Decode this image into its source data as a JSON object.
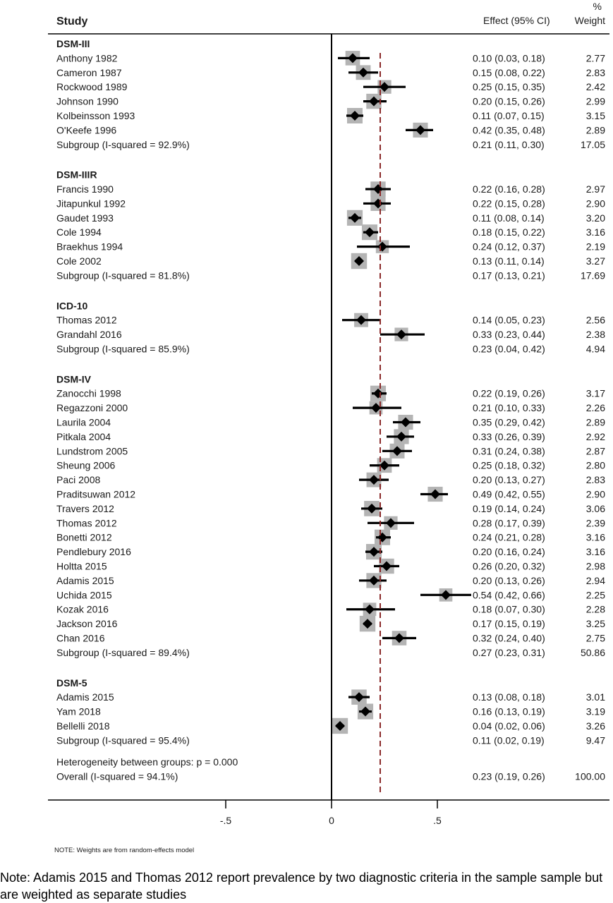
{
  "header": {
    "study": "Study",
    "effect": "Effect (95% CI)",
    "weight_pct": "%",
    "weight": "Weight"
  },
  "chart_data": {
    "type": "forest",
    "xlim": [
      -1.0,
      1.3
    ],
    "ticks": [
      {
        "value": -0.5,
        "label": "-.5"
      },
      {
        "value": 0,
        "label": "0"
      },
      {
        "value": 0.5,
        "label": ".5"
      }
    ],
    "reference_line": 0,
    "overall_line": 0.23,
    "groups": [
      {
        "name": "DSM-III",
        "studies": [
          {
            "label": "Anthony 1982",
            "es": 0.1,
            "lo": 0.03,
            "hi": 0.18,
            "ci": "0.10 (0.03, 0.18)",
            "weight": 2.77,
            "weight_label": "2.77"
          },
          {
            "label": "Cameron 1987",
            "es": 0.15,
            "lo": 0.08,
            "hi": 0.22,
            "ci": "0.15 (0.08, 0.22)",
            "weight": 2.83,
            "weight_label": "2.83"
          },
          {
            "label": "Rockwood 1989",
            "es": 0.25,
            "lo": 0.15,
            "hi": 0.35,
            "ci": "0.25 (0.15, 0.35)",
            "weight": 2.42,
            "weight_label": "2.42"
          },
          {
            "label": "Johnson 1990",
            "es": 0.2,
            "lo": 0.15,
            "hi": 0.26,
            "ci": "0.20 (0.15, 0.26)",
            "weight": 2.99,
            "weight_label": "2.99"
          },
          {
            "label": "Kolbeinsson 1993",
            "es": 0.11,
            "lo": 0.07,
            "hi": 0.15,
            "ci": "0.11 (0.07, 0.15)",
            "weight": 3.15,
            "weight_label": "3.15"
          },
          {
            "label": "O'Keefe 1996",
            "es": 0.42,
            "lo": 0.35,
            "hi": 0.48,
            "ci": "0.42 (0.35, 0.48)",
            "weight": 2.89,
            "weight_label": "2.89"
          }
        ],
        "subgroup": {
          "label": "Subgroup (I-squared = 92.9%)",
          "es": 0.21,
          "lo": 0.11,
          "hi": 0.3,
          "ci": "0.21 (0.11, 0.30)",
          "weight_label": "17.05"
        }
      },
      {
        "name": "DSM-IIIR",
        "studies": [
          {
            "label": "Francis 1990",
            "es": 0.22,
            "lo": 0.16,
            "hi": 0.28,
            "ci": "0.22 (0.16, 0.28)",
            "weight": 2.97,
            "weight_label": "2.97"
          },
          {
            "label": "Jitapunkul 1992",
            "es": 0.22,
            "lo": 0.15,
            "hi": 0.28,
            "ci": "0.22 (0.15, 0.28)",
            "weight": 2.9,
            "weight_label": "2.90"
          },
          {
            "label": "Gaudet 1993",
            "es": 0.11,
            "lo": 0.08,
            "hi": 0.14,
            "ci": "0.11 (0.08, 0.14)",
            "weight": 3.2,
            "weight_label": "3.20"
          },
          {
            "label": "Cole 1994",
            "es": 0.18,
            "lo": 0.15,
            "hi": 0.22,
            "ci": "0.18 (0.15, 0.22)",
            "weight": 3.16,
            "weight_label": "3.16"
          },
          {
            "label": "Braekhus 1994",
            "es": 0.24,
            "lo": 0.12,
            "hi": 0.37,
            "ci": "0.24 (0.12, 0.37)",
            "weight": 2.19,
            "weight_label": "2.19"
          },
          {
            "label": "Cole 2002",
            "es": 0.13,
            "lo": 0.11,
            "hi": 0.14,
            "ci": "0.13 (0.11, 0.14)",
            "weight": 3.27,
            "weight_label": "3.27"
          }
        ],
        "subgroup": {
          "label": "Subgroup (I-squared = 81.8%)",
          "es": 0.17,
          "lo": 0.13,
          "hi": 0.21,
          "ci": "0.17 (0.13, 0.21)",
          "weight_label": "17.69"
        }
      },
      {
        "name": "ICD-10",
        "studies": [
          {
            "label": "Thomas 2012",
            "es": 0.14,
            "lo": 0.05,
            "hi": 0.23,
            "ci": "0.14 (0.05, 0.23)",
            "weight": 2.56,
            "weight_label": "2.56"
          },
          {
            "label": "Grandahl 2016",
            "es": 0.33,
            "lo": 0.23,
            "hi": 0.44,
            "ci": "0.33 (0.23, 0.44)",
            "weight": 2.38,
            "weight_label": "2.38"
          }
        ],
        "subgroup": {
          "label": "Subgroup (I-squared = 85.9%)",
          "es": 0.23,
          "lo": 0.04,
          "hi": 0.42,
          "ci": "0.23 (0.04, 0.42)",
          "weight_label": "4.94"
        }
      },
      {
        "name": "DSM-IV",
        "studies": [
          {
            "label": "Zanocchi 1998",
            "es": 0.22,
            "lo": 0.19,
            "hi": 0.26,
            "ci": "0.22 (0.19, 0.26)",
            "weight": 3.17,
            "weight_label": "3.17"
          },
          {
            "label": "Regazzoni 2000",
            "es": 0.21,
            "lo": 0.1,
            "hi": 0.33,
            "ci": "0.21 (0.10, 0.33)",
            "weight": 2.26,
            "weight_label": "2.26"
          },
          {
            "label": "Laurila 2004",
            "es": 0.35,
            "lo": 0.29,
            "hi": 0.42,
            "ci": "0.35 (0.29, 0.42)",
            "weight": 2.89,
            "weight_label": "2.89"
          },
          {
            "label": "Pitkala 2004",
            "es": 0.33,
            "lo": 0.26,
            "hi": 0.39,
            "ci": "0.33 (0.26, 0.39)",
            "weight": 2.92,
            "weight_label": "2.92"
          },
          {
            "label": "Lundstrom 2005",
            "es": 0.31,
            "lo": 0.24,
            "hi": 0.38,
            "ci": "0.31 (0.24, 0.38)",
            "weight": 2.87,
            "weight_label": "2.87"
          },
          {
            "label": "Sheung 2006",
            "es": 0.25,
            "lo": 0.18,
            "hi": 0.32,
            "ci": "0.25 (0.18, 0.32)",
            "weight": 2.8,
            "weight_label": "2.80"
          },
          {
            "label": "Paci 2008",
            "es": 0.2,
            "lo": 0.13,
            "hi": 0.27,
            "ci": "0.20 (0.13, 0.27)",
            "weight": 2.83,
            "weight_label": "2.83"
          },
          {
            "label": "Praditsuwan 2012",
            "es": 0.49,
            "lo": 0.42,
            "hi": 0.55,
            "ci": "0.49 (0.42, 0.55)",
            "weight": 2.9,
            "weight_label": "2.90"
          },
          {
            "label": "Travers 2012",
            "es": 0.19,
            "lo": 0.14,
            "hi": 0.24,
            "ci": "0.19 (0.14, 0.24)",
            "weight": 3.06,
            "weight_label": "3.06"
          },
          {
            "label": "Thomas 2012",
            "es": 0.28,
            "lo": 0.17,
            "hi": 0.39,
            "ci": "0.28 (0.17, 0.39)",
            "weight": 2.39,
            "weight_label": "2.39"
          },
          {
            "label": "Bonetti 2012",
            "es": 0.24,
            "lo": 0.21,
            "hi": 0.28,
            "ci": "0.24 (0.21, 0.28)",
            "weight": 3.16,
            "weight_label": "3.16"
          },
          {
            "label": "Pendlebury 2016",
            "es": 0.2,
            "lo": 0.16,
            "hi": 0.24,
            "ci": "0.20 (0.16, 0.24)",
            "weight": 3.16,
            "weight_label": "3.16"
          },
          {
            "label": "Holtta 2015",
            "es": 0.26,
            "lo": 0.2,
            "hi": 0.32,
            "ci": "0.26 (0.20, 0.32)",
            "weight": 2.98,
            "weight_label": "2.98"
          },
          {
            "label": "Adamis 2015",
            "es": 0.2,
            "lo": 0.13,
            "hi": 0.26,
            "ci": "0.20 (0.13, 0.26)",
            "weight": 2.94,
            "weight_label": "2.94"
          },
          {
            "label": "Uchida 2015",
            "es": 0.54,
            "lo": 0.42,
            "hi": 0.66,
            "ci": "0.54 (0.42, 0.66)",
            "weight": 2.25,
            "weight_label": "2.25"
          },
          {
            "label": "Kozak 2016",
            "es": 0.18,
            "lo": 0.07,
            "hi": 0.3,
            "ci": "0.18 (0.07, 0.30)",
            "weight": 2.28,
            "weight_label": "2.28"
          },
          {
            "label": "Jackson 2016",
            "es": 0.17,
            "lo": 0.15,
            "hi": 0.19,
            "ci": "0.17 (0.15, 0.19)",
            "weight": 3.25,
            "weight_label": "3.25"
          },
          {
            "label": "Chan 2016",
            "es": 0.32,
            "lo": 0.24,
            "hi": 0.4,
            "ci": "0.32 (0.24, 0.40)",
            "weight": 2.75,
            "weight_label": "2.75"
          }
        ],
        "subgroup": {
          "label": "Subgroup (I-squared = 89.4%)",
          "es": 0.27,
          "lo": 0.23,
          "hi": 0.31,
          "ci": "0.27 (0.23, 0.31)",
          "weight_label": "50.86"
        }
      },
      {
        "name": "DSM-5",
        "studies": [
          {
            "label": "Adamis 2015",
            "es": 0.13,
            "lo": 0.08,
            "hi": 0.18,
            "ci": "0.13 (0.08, 0.18)",
            "weight": 3.01,
            "weight_label": "3.01"
          },
          {
            "label": "Yam 2018",
            "es": 0.16,
            "lo": 0.13,
            "hi": 0.19,
            "ci": "0.16 (0.13, 0.19)",
            "weight": 3.19,
            "weight_label": "3.19"
          },
          {
            "label": "Bellelli 2018",
            "es": 0.04,
            "lo": 0.02,
            "hi": 0.06,
            "ci": "0.04 (0.02, 0.06)",
            "weight": 3.26,
            "weight_label": "3.26"
          }
        ],
        "subgroup": {
          "label": "Subgroup (I-squared = 95.4%)",
          "es": 0.11,
          "lo": 0.02,
          "hi": 0.19,
          "ci": "0.11 (0.02, 0.19)",
          "weight_label": "9.47"
        }
      }
    ],
    "heterogeneity": "Heterogeneity between groups: p = 0.000",
    "overall": {
      "label": "Overall (I-squared = 94.1%)",
      "es": 0.23,
      "lo": 0.19,
      "hi": 0.26,
      "ci": "0.23 (0.19, 0.26)",
      "weight_label": "100.00"
    },
    "colors": {
      "box": "#b4b4b4",
      "marker": "#000000",
      "overall_line": "#8b2a2a",
      "text": "#1a1a1a"
    }
  },
  "weights_note": "NOTE: Weights are from random-effects model",
  "footnote": "Note: Adamis 2015 and Thomas 2012 report prevalence by two diagnostic criteria in the sample sample but are weighted as separate studies"
}
